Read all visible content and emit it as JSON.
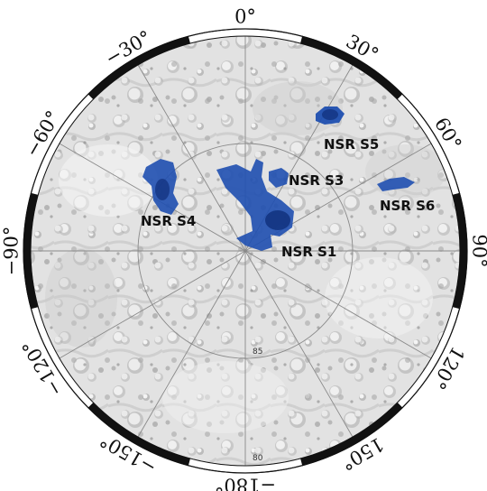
{
  "map": {
    "longitude_labels": [
      {
        "angle": 0,
        "text": "0°"
      },
      {
        "angle": 30,
        "text": "30°"
      },
      {
        "angle": 60,
        "text": "60°"
      },
      {
        "angle": 90,
        "text": "90°"
      },
      {
        "angle": 120,
        "text": "120°"
      },
      {
        "angle": 150,
        "text": "150°"
      },
      {
        "angle": 180,
        "text": "−180°"
      },
      {
        "angle": -150,
        "text": "−150°"
      },
      {
        "angle": -120,
        "text": "−120°"
      },
      {
        "angle": -90,
        "text": "−90°"
      },
      {
        "angle": -60,
        "text": "−60°"
      },
      {
        "angle": -30,
        "text": "−30°"
      }
    ],
    "latitude_labels": [
      {
        "lat": 85,
        "text": "85"
      },
      {
        "lat": 80,
        "text": "80"
      }
    ],
    "regions": [
      {
        "id": "s1",
        "label": "NSR S1"
      },
      {
        "id": "s3",
        "label": "NSR S3"
      },
      {
        "id": "s4",
        "label": "NSR S4"
      },
      {
        "id": "s5",
        "label": "NSR S5"
      },
      {
        "id": "s6",
        "label": "NSR S6"
      }
    ],
    "colors": {
      "region_fill": "#1f4fb0",
      "region_core": "#0f2f7a",
      "surface": "#d9d9d9",
      "border": "#111111"
    }
  }
}
